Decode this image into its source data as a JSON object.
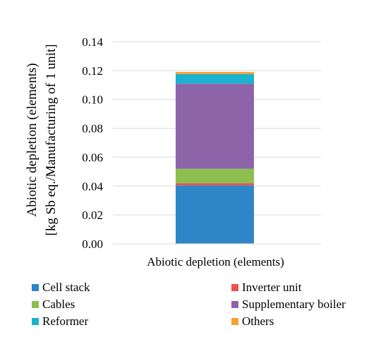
{
  "chart_data": {
    "type": "bar",
    "stacked": true,
    "title": "",
    "xlabel": "",
    "ylabel_line1": "Abiotic depletion (elements)",
    "ylabel_line2": "[kg Sb eq./Manufacturing of 1 unit]",
    "categories": [
      "Abiotic depletion (elements)"
    ],
    "ylim": [
      0,
      0.14
    ],
    "yticks": [
      "0.00",
      "0.02",
      "0.04",
      "0.06",
      "0.08",
      "0.10",
      "0.12",
      "0.14"
    ],
    "grid": true,
    "legend_position": "bottom",
    "series": [
      {
        "name": "Cell stack",
        "values": [
          0.0405
        ],
        "color": "#2e86c8"
      },
      {
        "name": "Inverter unit",
        "values": [
          0.0015
        ],
        "color": "#e8524a"
      },
      {
        "name": "Cables",
        "values": [
          0.01
        ],
        "color": "#8cbf4f"
      },
      {
        "name": "Supplementary boiler",
        "values": [
          0.059
        ],
        "color": "#8e64a8"
      },
      {
        "name": "Reformer",
        "values": [
          0.0065
        ],
        "color": "#19b2cf"
      },
      {
        "name": "Others",
        "values": [
          0.0015
        ],
        "color": "#f6a033"
      }
    ]
  }
}
